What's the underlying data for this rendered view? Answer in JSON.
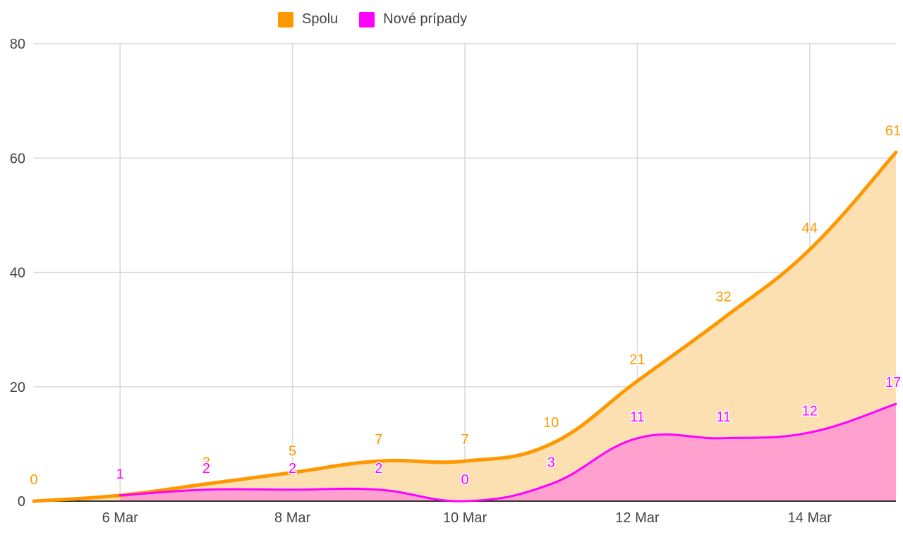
{
  "colors": {
    "spolu_line": "#FF9800",
    "spolu_fill": "#FCE0B2",
    "nove_line": "#FF00FF",
    "nove_fill": "#FFA0CF",
    "grid": "#D9D9D9",
    "axis_text": "#444444"
  },
  "legend": {
    "items": [
      {
        "label": "Spolu",
        "color": "#FF9800"
      },
      {
        "label": "Nové prípady",
        "color": "#FF00FF"
      }
    ]
  },
  "chart_data": {
    "type": "area",
    "title": "",
    "xlabel": "",
    "ylabel": "",
    "x": [
      "5 Mar",
      "6 Mar",
      "7 Mar",
      "8 Mar",
      "9 Mar",
      "10 Mar",
      "11 Mar",
      "12 Mar",
      "13 Mar",
      "14 Mar",
      "15 Mar"
    ],
    "x_tick_labels": [
      "6 Mar",
      "8 Mar",
      "10 Mar",
      "12 Mar",
      "14 Mar"
    ],
    "y_ticks": [
      0,
      20,
      40,
      60,
      80
    ],
    "ylim": [
      0,
      80
    ],
    "grid": true,
    "legend_position": "top",
    "series": [
      {
        "name": "Spolu",
        "values": [
          0,
          1,
          3,
          5,
          7,
          7,
          10,
          21,
          32,
          44,
          61
        ],
        "labels": [
          "0",
          "",
          "3",
          "5",
          "7",
          "7",
          "10",
          "21",
          "32",
          "44",
          "61"
        ],
        "color": "#FF9800"
      },
      {
        "name": "Nové prípady",
        "values": [
          null,
          1,
          2,
          2,
          2,
          0,
          3,
          11,
          11,
          12,
          17
        ],
        "labels": [
          "",
          "1",
          "2",
          "2",
          "2",
          "0",
          "3",
          "11",
          "11",
          "12",
          "17"
        ],
        "color": "#FF00FF"
      }
    ]
  }
}
